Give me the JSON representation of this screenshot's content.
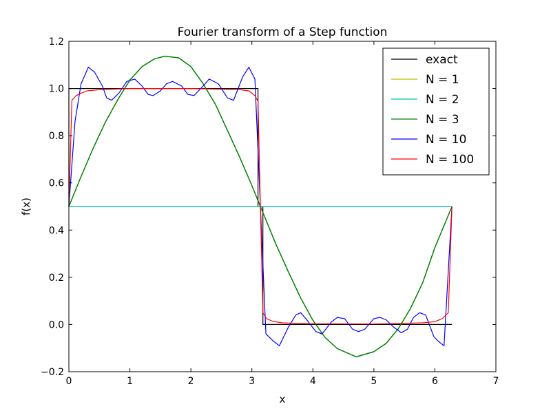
{
  "chart_data": {
    "type": "line",
    "title": "Fourier transform of a Step function",
    "xlabel": "x",
    "ylabel": "f(x)",
    "xlim": [
      0,
      7
    ],
    "ylim": [
      -0.2,
      1.2
    ],
    "grid": false,
    "legend_position": "top-right",
    "xticks": [
      0,
      1,
      2,
      3,
      4,
      5,
      6,
      7
    ],
    "xtick_labels": [
      "0",
      "1",
      "2",
      "3",
      "4",
      "5",
      "6",
      "7"
    ],
    "yticks": [
      -0.2,
      0.0,
      0.2,
      0.4,
      0.6,
      0.8,
      1.0,
      1.2
    ],
    "ytick_labels": [
      "−0.2",
      "0.0",
      "0.2",
      "0.4",
      "0.6",
      "0.8",
      "1.0",
      "1.2"
    ],
    "series": [
      {
        "name": "exact",
        "color": "#000000",
        "x": [
          0,
          0,
          3.1,
          3.1,
          3.18,
          3.18,
          6.28
        ],
        "y": [
          0.5,
          1.0,
          1.0,
          0.5,
          0.5,
          0.0,
          0.0
        ]
      },
      {
        "name": "N = 1",
        "color": "#bfbf00",
        "x": [
          0,
          6.28
        ],
        "y": [
          0.5,
          0.5
        ]
      },
      {
        "name": "N = 2",
        "color": "#00bfbf",
        "x": [
          0,
          6.28
        ],
        "y": [
          0.5,
          0.5
        ]
      },
      {
        "name": "N = 3",
        "color": "#008000",
        "x": [
          0.0,
          0.2,
          0.4,
          0.6,
          0.8,
          1.0,
          1.2,
          1.4,
          1.57,
          1.8,
          2.0,
          2.2,
          2.4,
          2.6,
          2.8,
          3.0,
          3.14,
          3.4,
          3.6,
          3.8,
          4.0,
          4.2,
          4.4,
          4.71,
          5.0,
          5.2,
          5.4,
          5.6,
          5.8,
          6.0,
          6.28
        ],
        "y": [
          0.5,
          0.627,
          0.748,
          0.858,
          0.952,
          1.036,
          1.093,
          1.125,
          1.137,
          1.13,
          1.093,
          1.02,
          0.934,
          0.822,
          0.709,
          0.589,
          0.5,
          0.337,
          0.222,
          0.112,
          0.018,
          -0.055,
          -0.102,
          -0.137,
          -0.115,
          -0.08,
          -0.018,
          0.068,
          0.177,
          0.326,
          0.5
        ]
      },
      {
        "name": "N = 10",
        "color": "#0000ff",
        "x": [
          0.0,
          0.1,
          0.2,
          0.32,
          0.42,
          0.55,
          0.62,
          0.7,
          0.82,
          0.95,
          1.08,
          1.2,
          1.3,
          1.38,
          1.5,
          1.6,
          1.7,
          1.85,
          1.95,
          2.05,
          2.2,
          2.3,
          2.45,
          2.6,
          2.7,
          2.85,
          2.95,
          3.05,
          3.14,
          3.23,
          3.35,
          3.45,
          3.6,
          3.72,
          3.8,
          3.9,
          4.05,
          4.15,
          4.3,
          4.4,
          4.52,
          4.65,
          4.75,
          4.85,
          5.0,
          5.1,
          5.2,
          5.32,
          5.45,
          5.55,
          5.65,
          5.75,
          5.85,
          5.98,
          6.05,
          6.15,
          6.28
        ],
        "y": [
          0.5,
          0.86,
          1.02,
          1.09,
          1.07,
          1.01,
          0.96,
          0.95,
          0.98,
          1.03,
          1.04,
          1.01,
          0.975,
          0.97,
          0.99,
          1.02,
          1.03,
          1.01,
          0.975,
          0.97,
          1.01,
          1.04,
          1.02,
          0.96,
          0.95,
          1.05,
          1.09,
          1.04,
          0.5,
          -0.04,
          -0.07,
          -0.09,
          -0.01,
          0.04,
          0.05,
          0.02,
          -0.03,
          -0.04,
          0.01,
          0.03,
          0.025,
          -0.02,
          -0.03,
          -0.02,
          0.025,
          0.03,
          0.02,
          -0.01,
          -0.035,
          -0.02,
          0.03,
          0.05,
          0.04,
          -0.05,
          -0.07,
          -0.09,
          0.5
        ]
      },
      {
        "name": "N = 100",
        "color": "#ff0000",
        "x": [
          0.0,
          0.05,
          0.12,
          0.2,
          0.3,
          0.5,
          1.0,
          2.0,
          2.8,
          2.95,
          3.05,
          3.1,
          3.14,
          3.18,
          3.24,
          3.35,
          3.5,
          4.0,
          5.0,
          5.8,
          6.0,
          6.12,
          6.22,
          6.28
        ],
        "y": [
          0.5,
          0.95,
          0.97,
          0.98,
          0.99,
          0.995,
          1.0,
          1.0,
          0.995,
          0.99,
          0.97,
          0.945,
          0.5,
          0.05,
          0.025,
          0.013,
          0.007,
          0.003,
          0.002,
          0.007,
          0.012,
          0.025,
          0.05,
          0.5
        ]
      }
    ]
  }
}
